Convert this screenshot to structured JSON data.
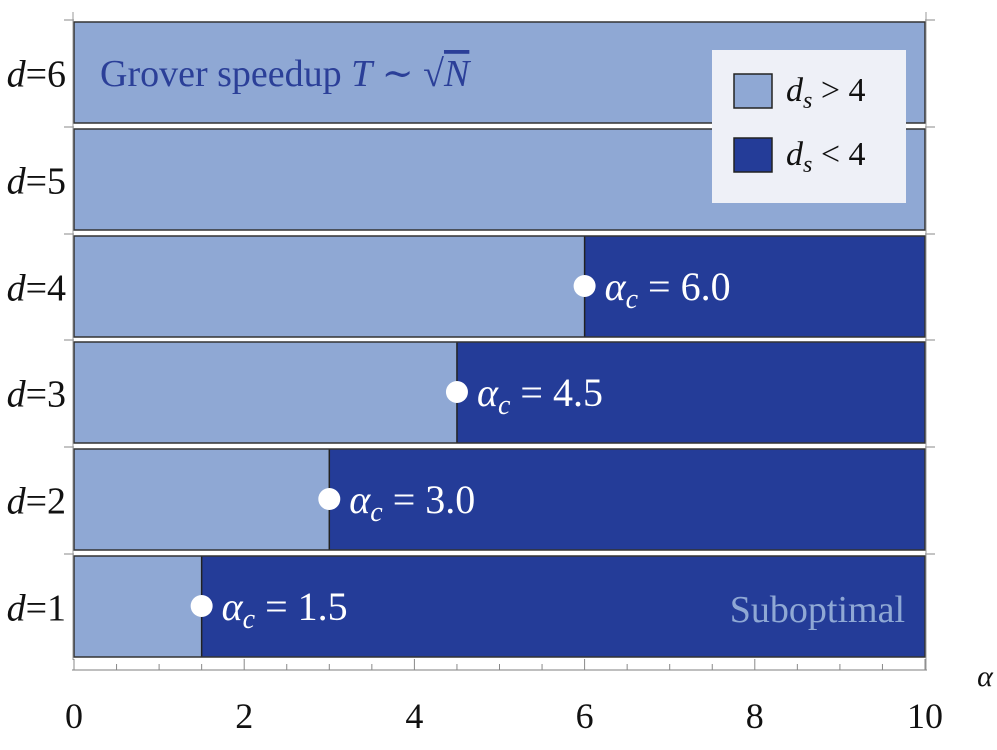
{
  "chart_data": {
    "type": "bar",
    "orientation": "horizontal",
    "stacked": true,
    "xlabel": "α",
    "xlim": [
      0,
      10
    ],
    "x_ticks": [
      "0",
      "2",
      "4",
      "6",
      "8",
      "10"
    ],
    "categories": [
      "d=1",
      "d=2",
      "d=3",
      "d=4",
      "d=5",
      "d=6"
    ],
    "category_labels": [
      {
        "var": "d",
        "eq": "=",
        "num": "1"
      },
      {
        "var": "d",
        "eq": "=",
        "num": "2"
      },
      {
        "var": "d",
        "eq": "=",
        "num": "3"
      },
      {
        "var": "d",
        "eq": "=",
        "num": "4"
      },
      {
        "var": "d",
        "eq": "=",
        "num": "5"
      },
      {
        "var": "d",
        "eq": "=",
        "num": "6"
      }
    ],
    "critical_alpha": [
      1.5,
      3.0,
      4.5,
      6.0,
      10,
      10
    ],
    "series": [
      {
        "name": "d_s > 4",
        "color": "#8fa8d4",
        "range_from": 0,
        "range_to": "critical_alpha"
      },
      {
        "name": "d_s < 4",
        "color": "#243c98",
        "range_from": "critical_alpha",
        "range_to": 10
      }
    ],
    "annotations": [
      {
        "row": 0,
        "x": 1.5,
        "var": "α",
        "sub": "c",
        "eq": " = ",
        "value": "1.5"
      },
      {
        "row": 1,
        "x": 3.0,
        "var": "α",
        "sub": "c",
        "eq": " = ",
        "value": "3.0"
      },
      {
        "row": 2,
        "x": 4.5,
        "var": "α",
        "sub": "c",
        "eq": " = ",
        "value": "4.5"
      },
      {
        "row": 3,
        "x": 6.0,
        "var": "α",
        "sub": "c",
        "eq": " = ",
        "value": "6.0"
      }
    ],
    "region_labels": {
      "grover_text": "Grover speedup",
      "grover_formula_var": "T",
      "grover_formula_sym": " ∼ ",
      "grover_formula_root": "√",
      "grover_formula_arg": "N",
      "suboptimal": "Suboptimal"
    },
    "legend": {
      "position": "top-right",
      "entries": [
        {
          "var": "d",
          "sub": "s",
          "rel": " > ",
          "num": "4",
          "color": "#8fa8d4"
        },
        {
          "var": "d",
          "sub": "s",
          "rel": " < ",
          "num": "4",
          "color": "#243c98"
        }
      ]
    },
    "colors": {
      "light": "#8fa8d4",
      "dark": "#243c98",
      "grover_text": "#2b3f98",
      "suboptimal_text": "#8fa8d4",
      "legend_bg": "#eef0f7"
    }
  }
}
